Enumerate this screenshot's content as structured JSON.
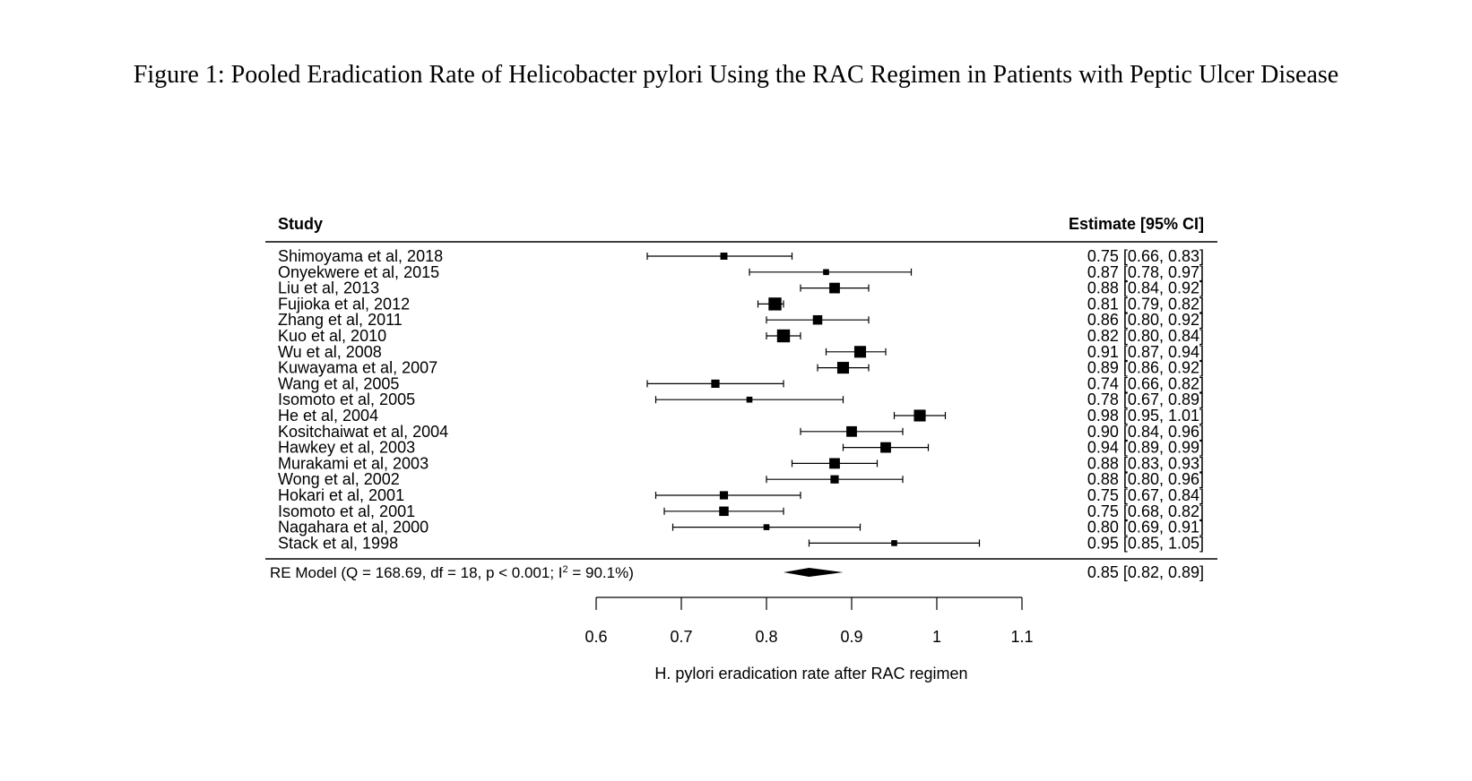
{
  "figure_title": "Figure 1: Pooled Eradication Rate of Helicobacter pylori Using the RAC Regimen in Patients with Peptic Ulcer Disease",
  "chart_data": {
    "type": "forest",
    "study_header": "Study",
    "estimate_header": "Estimate [95% CI]",
    "xlabel": "H. pylori eradication rate after RAC regimen",
    "xlim": [
      0.6,
      1.1
    ],
    "xticks": [
      0.6,
      0.7,
      0.8,
      0.9,
      1.0,
      1.1
    ],
    "xtick_labels": [
      "0.6",
      "0.7",
      "0.8",
      "0.9",
      "1",
      "1.1"
    ],
    "studies": [
      {
        "name": "Shimoyama et al, 2018",
        "est": 0.75,
        "lo": 0.66,
        "hi": 0.83,
        "label": "0.75 [0.66, 0.83]",
        "weight": 3
      },
      {
        "name": "Onyekwere et al, 2015",
        "est": 0.87,
        "lo": 0.78,
        "hi": 0.97,
        "label": "0.87 [0.78, 0.97]",
        "weight": 2
      },
      {
        "name": "Liu et al, 2013",
        "est": 0.88,
        "lo": 0.84,
        "hi": 0.92,
        "label": "0.88 [0.84, 0.92]",
        "weight": 6
      },
      {
        "name": "Fujioka et al, 2012",
        "est": 0.81,
        "lo": 0.79,
        "hi": 0.82,
        "label": "0.81 [0.79, 0.82]",
        "weight": 8
      },
      {
        "name": "Zhang et al, 2011",
        "est": 0.86,
        "lo": 0.8,
        "hi": 0.92,
        "label": "0.86 [0.80, 0.92]",
        "weight": 5
      },
      {
        "name": "Kuo et al, 2010",
        "est": 0.82,
        "lo": 0.8,
        "hi": 0.84,
        "label": "0.82 [0.80, 0.84]",
        "weight": 8
      },
      {
        "name": "Wu et al, 2008",
        "est": 0.91,
        "lo": 0.87,
        "hi": 0.94,
        "label": "0.91 [0.87, 0.94]",
        "weight": 7
      },
      {
        "name": "Kuwayama et al, 2007",
        "est": 0.89,
        "lo": 0.86,
        "hi": 0.92,
        "label": "0.89 [0.86, 0.92]",
        "weight": 7
      },
      {
        "name": "Wang et al, 2005",
        "est": 0.74,
        "lo": 0.66,
        "hi": 0.82,
        "label": "0.74 [0.66, 0.82]",
        "weight": 4
      },
      {
        "name": "Isomoto et al, 2005",
        "est": 0.78,
        "lo": 0.67,
        "hi": 0.89,
        "label": "0.78 [0.67, 0.89]",
        "weight": 2
      },
      {
        "name": "He et al, 2004",
        "est": 0.98,
        "lo": 0.95,
        "hi": 1.01,
        "label": "0.98 [0.95, 1.01]",
        "weight": 7
      },
      {
        "name": "Kositchaiwat et al, 2004",
        "est": 0.9,
        "lo": 0.84,
        "hi": 0.96,
        "label": "0.90 [0.84, 0.96]",
        "weight": 6
      },
      {
        "name": "Hawkey et al, 2003",
        "est": 0.94,
        "lo": 0.89,
        "hi": 0.99,
        "label": "0.94 [0.89, 0.99]",
        "weight": 6
      },
      {
        "name": "Murakami et al, 2003",
        "est": 0.88,
        "lo": 0.83,
        "hi": 0.93,
        "label": "0.88 [0.83, 0.93]",
        "weight": 6
      },
      {
        "name": "Wong et al, 2002",
        "est": 0.88,
        "lo": 0.8,
        "hi": 0.96,
        "label": "0.88 [0.80, 0.96]",
        "weight": 4
      },
      {
        "name": "Hokari et al, 2001",
        "est": 0.75,
        "lo": 0.67,
        "hi": 0.84,
        "label": "0.75 [0.67, 0.84]",
        "weight": 4
      },
      {
        "name": "Isomoto et al, 2001",
        "est": 0.75,
        "lo": 0.68,
        "hi": 0.82,
        "label": "0.75 [0.68, 0.82]",
        "weight": 5
      },
      {
        "name": "Nagahara et al, 2000",
        "est": 0.8,
        "lo": 0.69,
        "hi": 0.91,
        "label": "0.80 [0.69, 0.91]",
        "weight": 2
      },
      {
        "name": "Stack et al, 1998",
        "est": 0.95,
        "lo": 0.85,
        "hi": 1.05,
        "label": "0.95 [0.85, 1.05]",
        "weight": 2
      }
    ],
    "summary": {
      "label_prefix": "RE Model (Q = 168.69, df = 18, p < 0.001; I",
      "label_sup": "2",
      "label_suffix": " = 90.1%)",
      "est": 0.85,
      "lo": 0.82,
      "hi": 0.89,
      "ci_label": "0.85 [0.82, 0.89]"
    }
  }
}
